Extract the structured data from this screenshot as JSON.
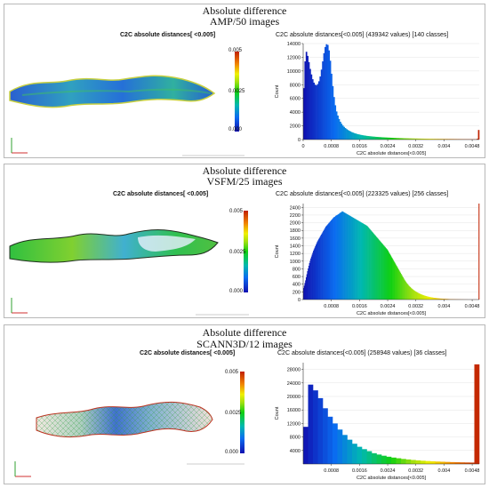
{
  "colors": {
    "scale_low": "#1010b0",
    "scale_mid": "#10d010",
    "scale_high": "#c02000",
    "axis_frame_red": "#d03030",
    "axis_frame_green": "#30a030"
  },
  "panels": [
    {
      "title_line1": "Absolute difference",
      "title_line2": "AMP/50 images",
      "colorbar_label": "C2C absolute distances[ <0.005]",
      "colorbar_ticks": [
        "0.005",
        "0.0025",
        "0.000"
      ]
    },
    {
      "title_line1": "Absolute difference",
      "title_line2": "VSFM/25 images",
      "colorbar_label": "C2C absolute distances[ <0.005]",
      "colorbar_ticks": [
        "0.005",
        "0.0025",
        "0.000"
      ]
    },
    {
      "title_line1": "Absolute difference",
      "title_line2": "SCANN3D/12 images",
      "colorbar_label": "C2C absolute distances[ <0.005]",
      "colorbar_ticks": [
        "0.005",
        "0.0025",
        "0.000"
      ]
    }
  ],
  "chart_data": [
    {
      "type": "bar",
      "title": "C2C absolute distances[<0.005] (439342 values)  [140 classes]",
      "xlabel": "C2C absolute distances[<0.005]",
      "ylabel": "Count",
      "xlim": [
        0,
        0.005
      ],
      "ylim": [
        0,
        14000
      ],
      "xticks": [
        "0",
        "0.0008",
        "0.0016",
        "0.0024",
        "0.0032",
        "0.004",
        "0.0048"
      ],
      "yticks": [
        "0",
        "2000",
        "4000",
        "6000",
        "8000",
        "10000",
        "12000",
        "14000"
      ],
      "bin_count": 140,
      "values": [
        7500,
        11400,
        12800,
        12200,
        11300,
        10300,
        9500,
        8800,
        8300,
        8000,
        7900,
        8100,
        8500,
        9200,
        10200,
        11400,
        12600,
        13500,
        13900,
        13800,
        13000,
        11500,
        9600,
        7800,
        6200,
        5000,
        4100,
        3500,
        3000,
        2600,
        2300,
        2050,
        1850,
        1680,
        1530,
        1400,
        1290,
        1190,
        1100,
        1020,
        950,
        890,
        830,
        780,
        740,
        700,
        660,
        625,
        595,
        565,
        540,
        515,
        495,
        475,
        455,
        438,
        420,
        405,
        390,
        376,
        363,
        350,
        338,
        327,
        316,
        306,
        296,
        287,
        278,
        270,
        262,
        254,
        246,
        239,
        232,
        225,
        219,
        213,
        207,
        201,
        196,
        191,
        186,
        181,
        176,
        171,
        167,
        163,
        159,
        155,
        151,
        147,
        143,
        140,
        137,
        134,
        131,
        128,
        125,
        122,
        119,
        116,
        113,
        110,
        108,
        106,
        104,
        102,
        100,
        98,
        96,
        94,
        92,
        90,
        88,
        86,
        84,
        82,
        80,
        78,
        76,
        74,
        72,
        70,
        68,
        66,
        64,
        62,
        60,
        58,
        56,
        54,
        52,
        50,
        48,
        46,
        45,
        44,
        120,
        1400
      ]
    },
    {
      "type": "bar",
      "title": "C2C absolute distances[<0.005] (223325 values)  [256 classes]",
      "xlabel": "C2C absolute distances[<0.005]",
      "ylabel": "Count",
      "xlim": [
        0,
        0.005
      ],
      "ylim": [
        0,
        2500
      ],
      "xticks": [
        "0.0008",
        "0.0016",
        "0.0024",
        "0.0032",
        "0.004",
        "0.0048"
      ],
      "yticks": [
        "0",
        "200",
        "400",
        "600",
        "800",
        "1000",
        "1200",
        "1400",
        "1600",
        "1800",
        "2000",
        "2200",
        "2400"
      ],
      "bin_count": 256,
      "values": [
        300,
        360,
        430,
        500,
        580,
        660,
        740,
        810,
        880,
        950,
        1010,
        1070,
        1120,
        1170,
        1220,
        1270,
        1310,
        1350,
        1390,
        1430,
        1470,
        1510,
        1540,
        1570,
        1600,
        1630,
        1660,
        1690,
        1720,
        1750,
        1780,
        1810,
        1840,
        1870,
        1900,
        1920,
        1940,
        1960,
        1980,
        2000,
        2020,
        2040,
        2060,
        2080,
        2100,
        2120,
        2140,
        2150,
        2160,
        2180,
        2190,
        2200,
        2210,
        2220,
        2230,
        2250,
        2260,
        2270,
        2280,
        2300,
        2290,
        2280,
        2270,
        2260,
        2250,
        2240,
        2230,
        2220,
        2210,
        2200,
        2190,
        2180,
        2170,
        2160,
        2150,
        2140,
        2130,
        2120,
        2110,
        2100,
        2090,
        2080,
        2070,
        2060,
        2050,
        2040,
        2030,
        2020,
        2010,
        2000,
        1990,
        1980,
        1970,
        1960,
        1950,
        1940,
        1930,
        1920,
        1900,
        1880,
        1860,
        1840,
        1820,
        1800,
        1780,
        1760,
        1740,
        1720,
        1700,
        1680,
        1660,
        1640,
        1620,
        1600,
        1580,
        1560,
        1540,
        1520,
        1500,
        1480,
        1460,
        1440,
        1420,
        1400,
        1380,
        1360,
        1340,
        1320,
        1300,
        1270,
        1240,
        1210,
        1180,
        1150,
        1120,
        1090,
        1060,
        1030,
        1000,
        970,
        940,
        910,
        880,
        850,
        820,
        790,
        760,
        730,
        700,
        670,
        640,
        610,
        580,
        550,
        520,
        495,
        470,
        445,
        420,
        400,
        380,
        360,
        342,
        325,
        308,
        292,
        277,
        263,
        250,
        237,
        225,
        214,
        203,
        193,
        183,
        174,
        165,
        157,
        149,
        141,
        134,
        127,
        120,
        114,
        108,
        102,
        97,
        92,
        87,
        82,
        78,
        74,
        70,
        66,
        62,
        59,
        56,
        53,
        50,
        47,
        44,
        42,
        40,
        38,
        36,
        34,
        32,
        30,
        28,
        26,
        25,
        24,
        23,
        22,
        21,
        20,
        19,
        18,
        17,
        16,
        15,
        14,
        13,
        12,
        11,
        10,
        10,
        9,
        9,
        8,
        8,
        7,
        7,
        6,
        6,
        5,
        5,
        5,
        4,
        4,
        4,
        3,
        3,
        3,
        3,
        2,
        2,
        2,
        2,
        2,
        2,
        1,
        1,
        1,
        1,
        1,
        1,
        1,
        1,
        1,
        1,
        1,
        1,
        1,
        1,
        1,
        1,
        1,
        2500
      ]
    },
    {
      "type": "bar",
      "title": "C2C absolute distances[<0.005] (258948 values)  [36 classes]",
      "xlabel": "C2C absolute distances[<0.005]",
      "ylabel": "Count",
      "xlim": [
        0,
        0.005
      ],
      "ylim": [
        0,
        30000
      ],
      "xticks": [
        "0.0008",
        "0.0016",
        "0.0024",
        "0.0032",
        "0.004",
        "0.0048"
      ],
      "yticks": [
        "4000",
        "8000",
        "12000",
        "16000",
        "20000",
        "24000",
        "28000"
      ],
      "bin_count": 36,
      "values": [
        11000,
        23500,
        21800,
        19500,
        16500,
        14000,
        12000,
        10200,
        8600,
        7200,
        6000,
        5100,
        4400,
        3800,
        3200,
        2800,
        2450,
        2150,
        1900,
        1700,
        1500,
        1350,
        1200,
        1080,
        970,
        880,
        800,
        730,
        670,
        610,
        560,
        520,
        480,
        450,
        420,
        29500
      ]
    }
  ]
}
